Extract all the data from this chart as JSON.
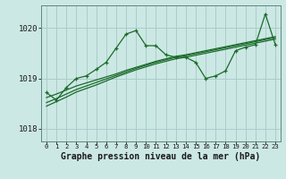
{
  "title": "Graphe pression niveau de la mer (hPa)",
  "background_color": "#cce8e4",
  "plot_bg_color": "#cce8e4",
  "grid_color": "#aaccca",
  "line_color": "#1a6b2a",
  "ylim": [
    1017.75,
    1020.45
  ],
  "yticks": [
    1018,
    1019,
    1020
  ],
  "xlim": [
    -0.5,
    23.5
  ],
  "xticks": [
    0,
    1,
    2,
    3,
    4,
    5,
    6,
    7,
    8,
    9,
    10,
    11,
    12,
    13,
    14,
    15,
    16,
    17,
    18,
    19,
    20,
    21,
    22,
    23
  ],
  "main_data": [
    1018.72,
    1018.57,
    1018.82,
    1019.0,
    1019.05,
    1019.18,
    1019.32,
    1019.6,
    1019.88,
    1019.95,
    1019.65,
    1019.65,
    1019.47,
    1019.42,
    1019.42,
    1019.32,
    1019.0,
    1019.05,
    1019.15,
    1019.55,
    1019.62,
    1019.67,
    1020.28,
    1019.67
  ],
  "trend1": [
    1018.62,
    1018.69,
    1018.77,
    1018.85,
    1018.91,
    1018.97,
    1019.03,
    1019.09,
    1019.16,
    1019.22,
    1019.28,
    1019.34,
    1019.39,
    1019.44,
    1019.47,
    1019.51,
    1019.55,
    1019.59,
    1019.63,
    1019.67,
    1019.71,
    1019.75,
    1019.79,
    1019.83
  ],
  "trend2": [
    1018.52,
    1018.6,
    1018.69,
    1018.78,
    1018.85,
    1018.92,
    1018.99,
    1019.06,
    1019.13,
    1019.2,
    1019.26,
    1019.32,
    1019.37,
    1019.42,
    1019.45,
    1019.49,
    1019.53,
    1019.57,
    1019.61,
    1019.65,
    1019.69,
    1019.73,
    1019.77,
    1019.81
  ],
  "trend3": [
    1018.45,
    1018.54,
    1018.63,
    1018.73,
    1018.8,
    1018.87,
    1018.95,
    1019.03,
    1019.1,
    1019.17,
    1019.23,
    1019.29,
    1019.34,
    1019.39,
    1019.42,
    1019.46,
    1019.5,
    1019.54,
    1019.58,
    1019.62,
    1019.66,
    1019.7,
    1019.74,
    1019.78
  ]
}
